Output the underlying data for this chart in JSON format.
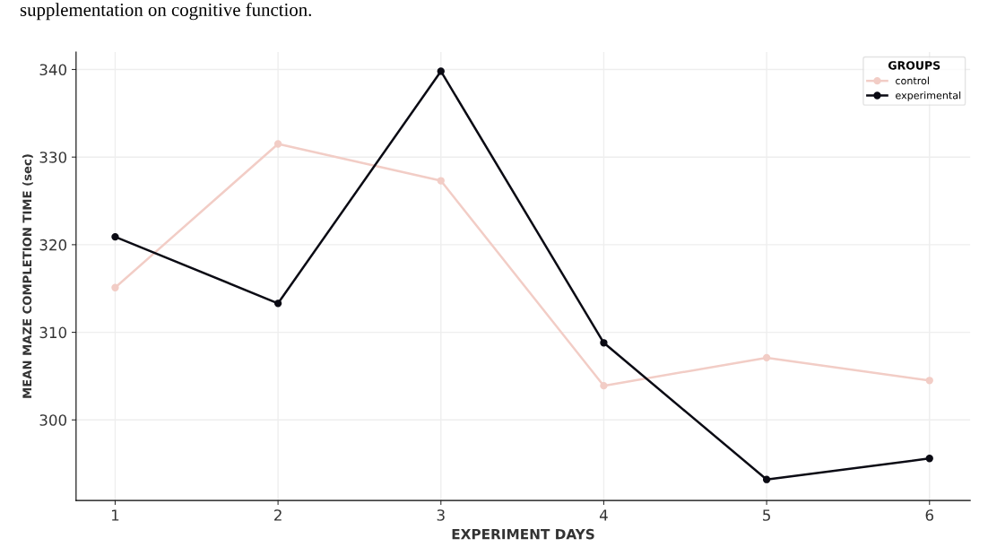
{
  "chart_data": {
    "type": "line",
    "annotations": [
      "supplementation on cognitive function."
    ],
    "xlabel": "EXPERIMENT DAYS",
    "ylabel": "MEAN MAZE COMPLETION TIME (sec)",
    "legend_title": "GROUPS",
    "x": [
      1,
      2,
      3,
      4,
      5,
      6
    ],
    "series": [
      {
        "name": "control",
        "color": "#f2cdc6",
        "values": [
          315.1,
          331.5,
          327.3,
          303.9,
          307.1,
          304.5
        ]
      },
      {
        "name": "experimental",
        "color": "#0b0b14",
        "values": [
          320.9,
          313.3,
          339.8,
          308.8,
          293.2,
          295.6
        ]
      }
    ],
    "xlim": [
      0.76,
      6.25
    ],
    "xticks": [
      1,
      2,
      3,
      4,
      5,
      6
    ],
    "ylim": [
      290.8,
      342
    ],
    "yticks": [
      300,
      310,
      320,
      330,
      340
    ],
    "grid": true,
    "legend": "top right",
    "marker": "circle",
    "line_style": "solid"
  }
}
